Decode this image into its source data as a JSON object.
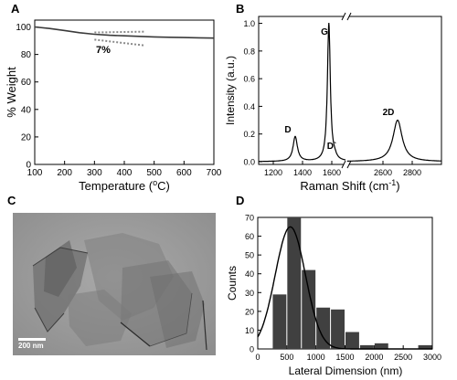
{
  "panels": {
    "a": {
      "letter": "A",
      "xlabel": "Temperature (",
      "xlabel_sup": "o",
      "xlabel_end": "C)",
      "ylabel": "% Weight",
      "annotation": "7%",
      "colors": {
        "curve": "#3a3a3a",
        "guide": "#8a8a8a"
      }
    },
    "b": {
      "letter": "B",
      "xlabel": "Raman Shift (cm",
      "xlabel_sup": "-1",
      "xlabel_end": ")",
      "ylabel": "Intensity (a.u.)",
      "peaks": [
        "D",
        "G",
        "D`",
        "2D"
      ]
    },
    "c": {
      "letter": "C",
      "scale_label": "200 nm"
    },
    "d": {
      "letter": "D",
      "xlabel": "Lateral Dimension (nm)",
      "ylabel": "Counts",
      "colors": {
        "bar": "#404040",
        "fit": "#000000"
      }
    }
  },
  "chart_data": [
    {
      "id": "A",
      "type": "line",
      "xlabel": "Temperature (oC)",
      "ylabel": "% Weight",
      "xlim": [
        100,
        700
      ],
      "ylim": [
        0,
        105
      ],
      "xticks": [
        100,
        200,
        300,
        400,
        500,
        600,
        700
      ],
      "yticks": [
        0,
        20,
        40,
        60,
        80,
        100
      ],
      "series": [
        {
          "x": [
            100,
            150,
            200,
            250,
            300,
            350,
            400,
            450,
            500,
            550,
            600,
            650,
            700
          ],
          "y": [
            100,
            98.9,
            97.4,
            95.8,
            94.7,
            94.0,
            93.6,
            93.2,
            92.8,
            92.5,
            92.3,
            92.1,
            91.9
          ]
        }
      ],
      "guides": [
        {
          "x": [
            300,
            470
          ],
          "y": [
            96.0,
            96.6
          ]
        },
        {
          "x": [
            300,
            470
          ],
          "y": [
            90.8,
            86.5
          ]
        }
      ],
      "annotations": [
        {
          "text": "7%",
          "x": 380,
          "y": 85
        }
      ]
    },
    {
      "id": "B",
      "type": "line",
      "xlabel": "Raman Shift (cm-1)",
      "ylabel": "Intensity (a.u.)",
      "xlim": [
        1100,
        3000
      ],
      "axis_break": [
        1700,
        2350
      ],
      "ylim": [
        -0.02,
        1.05
      ],
      "xticks": [
        1200,
        1400,
        1600,
        2600,
        2800
      ],
      "yticks": [
        0.0,
        0.2,
        0.4,
        0.6,
        0.8,
        1.0
      ],
      "peaks": [
        {
          "label": "D",
          "x": 1350,
          "height": 0.18,
          "width": 18
        },
        {
          "label": "G",
          "x": 1580,
          "height": 1.0,
          "width": 12
        },
        {
          "label": "D`",
          "x": 1620,
          "height": 0.02,
          "width": 14
        },
        {
          "label": "2D",
          "x": 2700,
          "height": 0.3,
          "width": 38
        }
      ]
    },
    {
      "id": "D",
      "type": "bar",
      "xlabel": "Lateral Dimension (nm)",
      "ylabel": "Counts",
      "xlim": [
        0,
        3000
      ],
      "ylim": [
        0,
        70
      ],
      "xticks": [
        0,
        500,
        1000,
        1500,
        2000,
        2500,
        3000
      ],
      "yticks": [
        0,
        10,
        20,
        30,
        40,
        50,
        60,
        70
      ],
      "bin_width": 250,
      "bin_starts": [
        250,
        500,
        750,
        1000,
        1250,
        1500,
        1750,
        2000,
        2250,
        2500,
        2750
      ],
      "values": [
        29,
        70,
        42,
        22,
        21,
        9,
        2,
        3,
        0,
        0,
        2
      ],
      "fit": {
        "type": "gaussian",
        "center": 560,
        "sigma": 260,
        "peak": 65,
        "baseline": 0
      }
    }
  ]
}
